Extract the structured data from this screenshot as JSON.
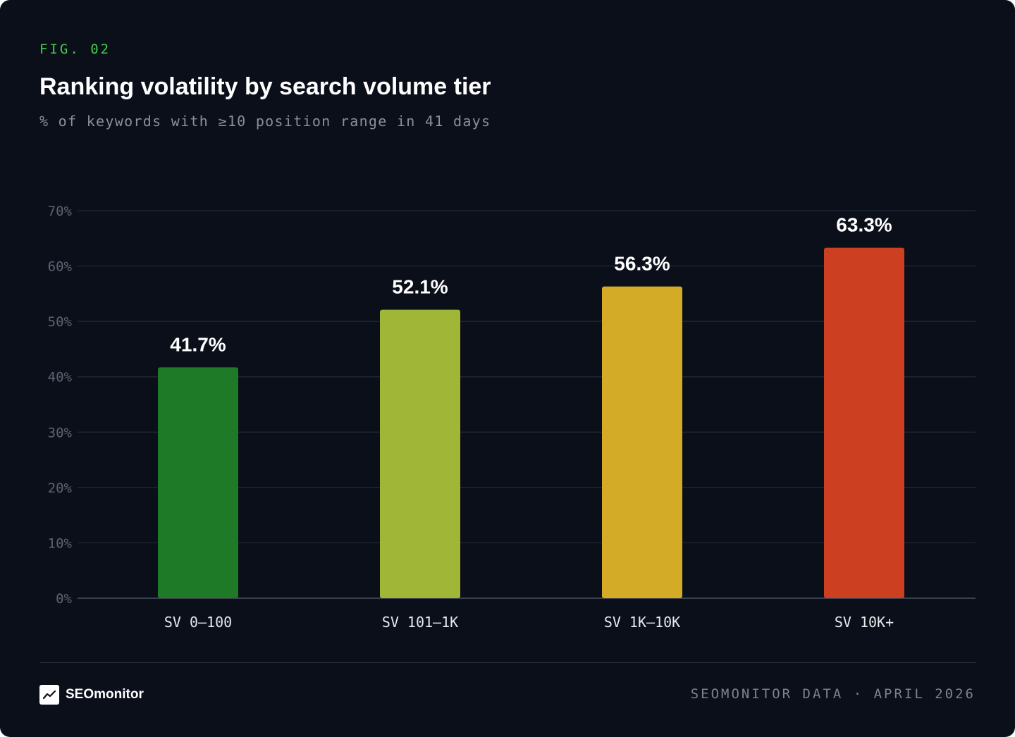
{
  "header": {
    "fig_label": "FIG. 02",
    "title": "Ranking volatility by search volume tier",
    "subtitle": "% of keywords with ≥10 position range in 41 days"
  },
  "chart_data": {
    "type": "bar",
    "categories": [
      "SV 0–100",
      "SV 101–1K",
      "SV 1K–10K",
      "SV 10K+"
    ],
    "values": [
      41.7,
      52.1,
      56.3,
      63.3
    ],
    "value_labels": [
      "41.7%",
      "52.1%",
      "56.3%",
      "63.3%"
    ],
    "bar_colors": [
      "#1e7a26",
      "#a0b637",
      "#d4ab26",
      "#cc3f20"
    ],
    "yticks": [
      "0%",
      "10%",
      "20%",
      "30%",
      "40%",
      "50%",
      "60%",
      "70%"
    ],
    "ylim": [
      0,
      70
    ],
    "ytick_step": 10,
    "grid": true,
    "title": "Ranking volatility by search volume tier",
    "xlabel": "",
    "ylabel": ""
  },
  "footer": {
    "brand_name": "SEOmonitor",
    "brand_icon": "trend-line-icon",
    "source": "SEOMONITOR DATA · APRIL 2026"
  },
  "colors": {
    "background": "#0b0f1a",
    "accent_green": "#3fcf4a",
    "grid": "#232938"
  }
}
